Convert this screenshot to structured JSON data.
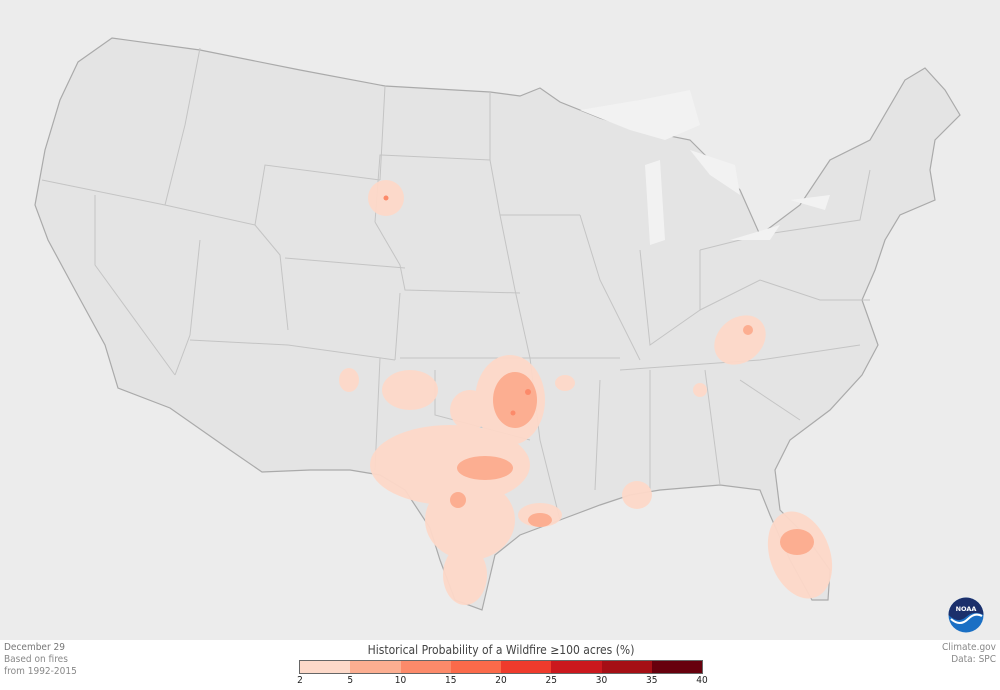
{
  "caption": {
    "date": "December 29",
    "line1": "Based on fires",
    "line2": "from 1992-2015"
  },
  "credit": {
    "site": "Climate.gov",
    "data": "Data: SPC"
  },
  "legend": {
    "title": "Historical Probability of a Wildfire ≥100 acres (%)",
    "ticks": [
      "2",
      "5",
      "10",
      "15",
      "20",
      "25",
      "30",
      "35",
      "40"
    ],
    "colors": [
      "#fdd9c9",
      "#fcae91",
      "#fc8a6a",
      "#fb6a4a",
      "#ef3b2c",
      "#cb181d",
      "#a50f15",
      "#67000d"
    ]
  },
  "map": {
    "land_color": "#e4e4e4",
    "border_color": "#bbbbbb",
    "background_color": "#f2f2f2"
  },
  "logo": {
    "text": "NOAA"
  }
}
